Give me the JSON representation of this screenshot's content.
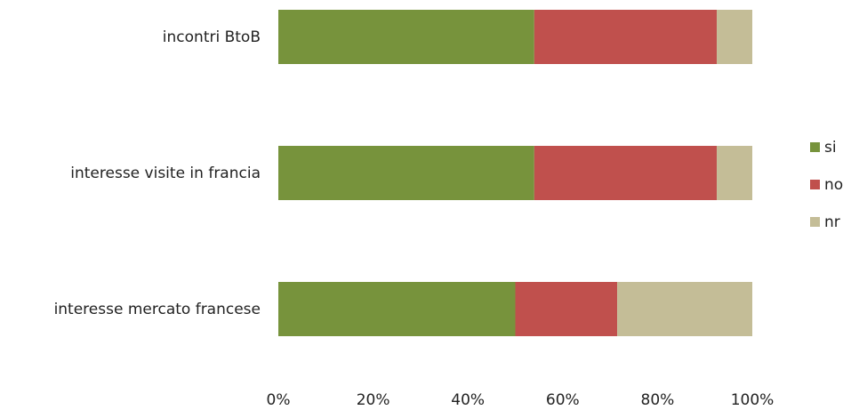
{
  "chart_data": {
    "type": "bar",
    "orientation": "horizontal",
    "stacked": "percent",
    "categories": [
      "incontri BtoB",
      "interesse visite in francia",
      "interesse mercato francese"
    ],
    "series": [
      {
        "name": "si",
        "values": [
          54,
          54,
          50
        ],
        "color": "#77933c"
      },
      {
        "name": "no",
        "values": [
          38.5,
          38.5,
          21.5
        ],
        "color": "#c0504d"
      },
      {
        "name": "nr",
        "values": [
          7.5,
          7.5,
          28.5
        ],
        "color": "#c4bd97"
      }
    ],
    "x_ticks": [
      "0%",
      "20%",
      "40%",
      "60%",
      "80%",
      "100%"
    ],
    "xlim": [
      0,
      100
    ],
    "grid": false,
    "legend_position": "right"
  }
}
